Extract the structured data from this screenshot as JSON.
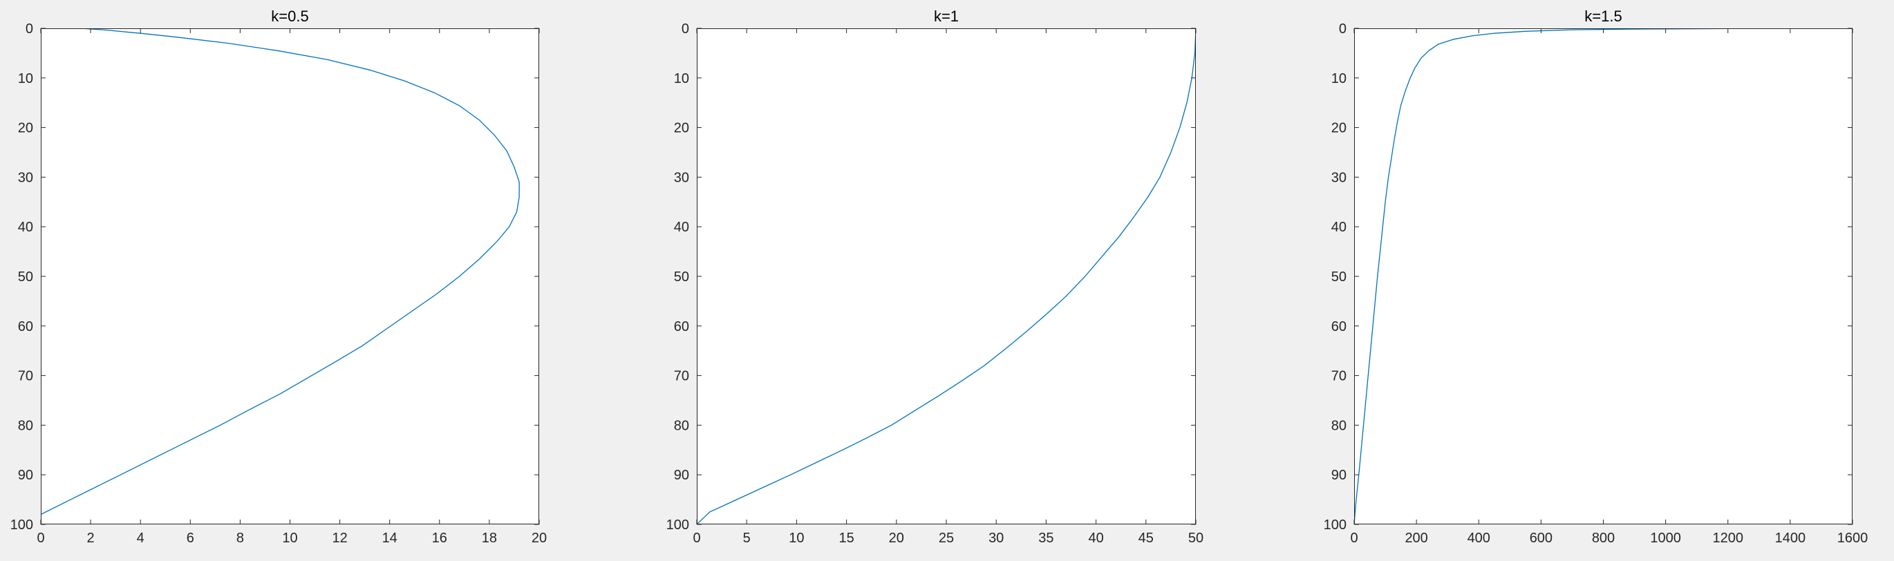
{
  "colors": {
    "figure_background": "#f0f0f0",
    "axes_background": "#ffffff",
    "axis_color": "#262626",
    "series_color": "#0072bd"
  },
  "chart_data": [
    {
      "type": "line",
      "title": "k=0.5",
      "xlabel": "",
      "ylabel": "",
      "xlim": [
        0,
        20
      ],
      "ylim": [
        0,
        100
      ],
      "y_direction": "reverse",
      "grid": false,
      "x_ticks": [
        0,
        2,
        4,
        6,
        8,
        10,
        12,
        14,
        16,
        18,
        20
      ],
      "y_ticks": [
        0,
        10,
        20,
        30,
        40,
        50,
        60,
        70,
        80,
        90,
        100
      ],
      "series": [
        {
          "x": [
            1.6,
            2.5,
            4.0,
            5.5,
            7.5,
            9.5,
            11.5,
            13.2,
            14.6,
            15.8,
            16.8,
            17.6,
            18.2,
            18.7,
            19.0,
            19.2,
            19.2,
            19.1,
            18.8,
            18.3,
            17.6,
            16.8,
            15.9,
            14.9,
            13.9,
            12.9,
            11.8,
            10.7,
            9.6,
            8.4,
            7.2,
            6.0,
            4.8,
            3.6,
            2.4,
            1.2,
            0.0
          ],
          "y": [
            0,
            0.3,
            1,
            1.8,
            3,
            4.5,
            6.3,
            8.4,
            10.6,
            13,
            15.6,
            18.5,
            21.5,
            24.7,
            28,
            31,
            34,
            37,
            40,
            43,
            46.5,
            50,
            53.5,
            57,
            60.5,
            64,
            67.3,
            70.5,
            73.7,
            76.8,
            80,
            83,
            86,
            89,
            92,
            95,
            98
          ]
        }
      ]
    },
    {
      "type": "line",
      "title": "k=1",
      "xlabel": "",
      "ylabel": "",
      "xlim": [
        0,
        50
      ],
      "ylim": [
        0,
        100
      ],
      "y_direction": "reverse",
      "grid": false,
      "x_ticks": [
        0,
        5,
        10,
        15,
        20,
        25,
        30,
        35,
        40,
        45,
        50
      ],
      "y_ticks": [
        0,
        10,
        20,
        30,
        40,
        50,
        60,
        70,
        80,
        90,
        100
      ],
      "series": [
        {
          "x": [
            50,
            49.9,
            49.6,
            49.1,
            48.4,
            47.5,
            46.4,
            45.2,
            43.8,
            42.3,
            40.6,
            38.9,
            37.0,
            35.1,
            33.1,
            31.0,
            28.8,
            26.6,
            24.3,
            21.9,
            19.5,
            17.1,
            14.6,
            12.0,
            9.4,
            6.7,
            4.0,
            1.3,
            0
          ],
          "y": [
            0,
            5,
            10,
            15,
            20,
            25,
            30,
            34,
            38,
            42,
            46,
            50,
            54,
            57.5,
            61,
            64.5,
            68,
            71,
            74,
            77,
            80,
            82.5,
            85,
            87.5,
            90,
            92.5,
            95,
            97.5,
            100
          ]
        }
      ]
    },
    {
      "type": "line",
      "title": "k=1.5",
      "xlabel": "",
      "ylabel": "",
      "xlim": [
        0,
        1600
      ],
      "ylim": [
        0,
        100
      ],
      "y_direction": "reverse",
      "grid": false,
      "x_ticks": [
        0,
        200,
        400,
        600,
        800,
        1000,
        1200,
        1400,
        1600
      ],
      "y_ticks": [
        0,
        10,
        20,
        30,
        40,
        50,
        60,
        70,
        80,
        90,
        100
      ],
      "series": [
        {
          "x": [
            1600,
            1200,
            900,
            700,
            550,
            450,
            380,
            320,
            270,
            240,
            215,
            195,
            180,
            165,
            150,
            140,
            130,
            120,
            110,
            100,
            90,
            75,
            60,
            45,
            30,
            15,
            5,
            0
          ],
          "y": [
            0,
            0.05,
            0.15,
            0.3,
            0.6,
            1.0,
            1.5,
            2.2,
            3.2,
            4.5,
            6,
            8,
            10,
            12.5,
            15.5,
            18.5,
            22,
            26,
            30,
            35,
            41,
            50,
            60,
            70,
            80,
            90,
            96,
            100
          ]
        }
      ]
    }
  ]
}
